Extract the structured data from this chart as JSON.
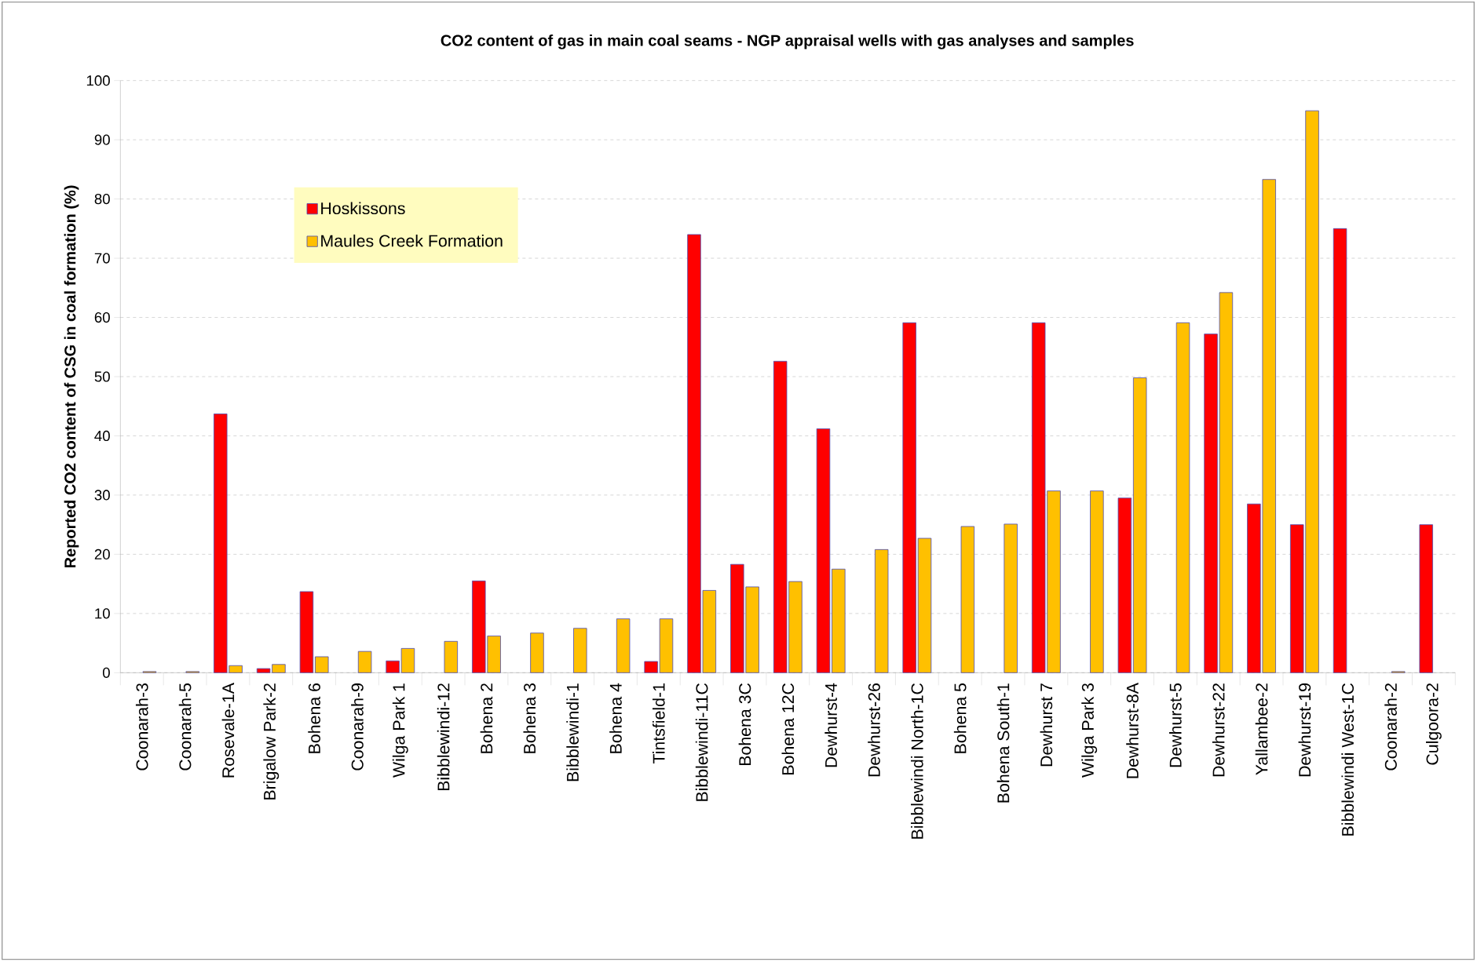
{
  "chart_data": {
    "type": "bar",
    "title": "CO2 content of gas in main coal seams - NGP appraisal wells with gas analyses and samples",
    "ylabel": "Reported CO2 content of CSG in coal formation (%)",
    "categories": [
      "Coonarah-3",
      "Coonarah-5",
      "Rosevale-1A",
      "Brigalow Park-2",
      "Bohena 6",
      "Coonarah-9",
      "Wilga Park 1",
      "Bibblewindi-12",
      "Bohena 2",
      "Bohena 3",
      "Bibblewindi-1",
      "Bohena 4",
      "Tintsfield-1",
      "Bibblewindi-11C",
      "Bohena 3C",
      "Bohena 12C",
      "Dewhurst-4",
      "Dewhurst-26",
      "Bibblewindi North-1C",
      "Bohena 5",
      "Bohena South-1",
      "Dewhurst 7",
      "Wilga Park 3",
      "Dewhurst-8A",
      "Dewhurst-5",
      "Dewhurst-22",
      "Yallambee-2",
      "Dewhurst-19",
      "Bibblewindi West-1C",
      "Coonarah-2",
      "Culgoora-2"
    ],
    "series": [
      {
        "name": "Hoskissons",
        "color": "#ff0000",
        "values": [
          null,
          null,
          43.7,
          0.7,
          13.7,
          null,
          2.0,
          null,
          15.5,
          null,
          null,
          null,
          1.9,
          74.0,
          18.3,
          52.6,
          41.2,
          null,
          59.1,
          null,
          null,
          59.1,
          null,
          29.5,
          null,
          57.2,
          28.5,
          25.0,
          75.0,
          null,
          25.0
        ]
      },
      {
        "name": "Maules Creek Formation",
        "color": "#ffc000",
        "values": [
          0.2,
          0.2,
          1.2,
          1.4,
          2.7,
          3.6,
          4.1,
          5.3,
          6.2,
          6.7,
          7.5,
          9.1,
          9.1,
          13.9,
          14.5,
          15.4,
          17.5,
          20.8,
          22.7,
          24.7,
          25.1,
          30.7,
          30.7,
          49.8,
          59.1,
          64.2,
          83.3,
          94.9,
          null,
          0.2,
          null
        ]
      }
    ],
    "ylim": [
      0,
      100
    ],
    "yticks": [
      0,
      10,
      20,
      30,
      40,
      50,
      60,
      70,
      80,
      90,
      100
    ],
    "grid": "y",
    "legend": "top left"
  }
}
